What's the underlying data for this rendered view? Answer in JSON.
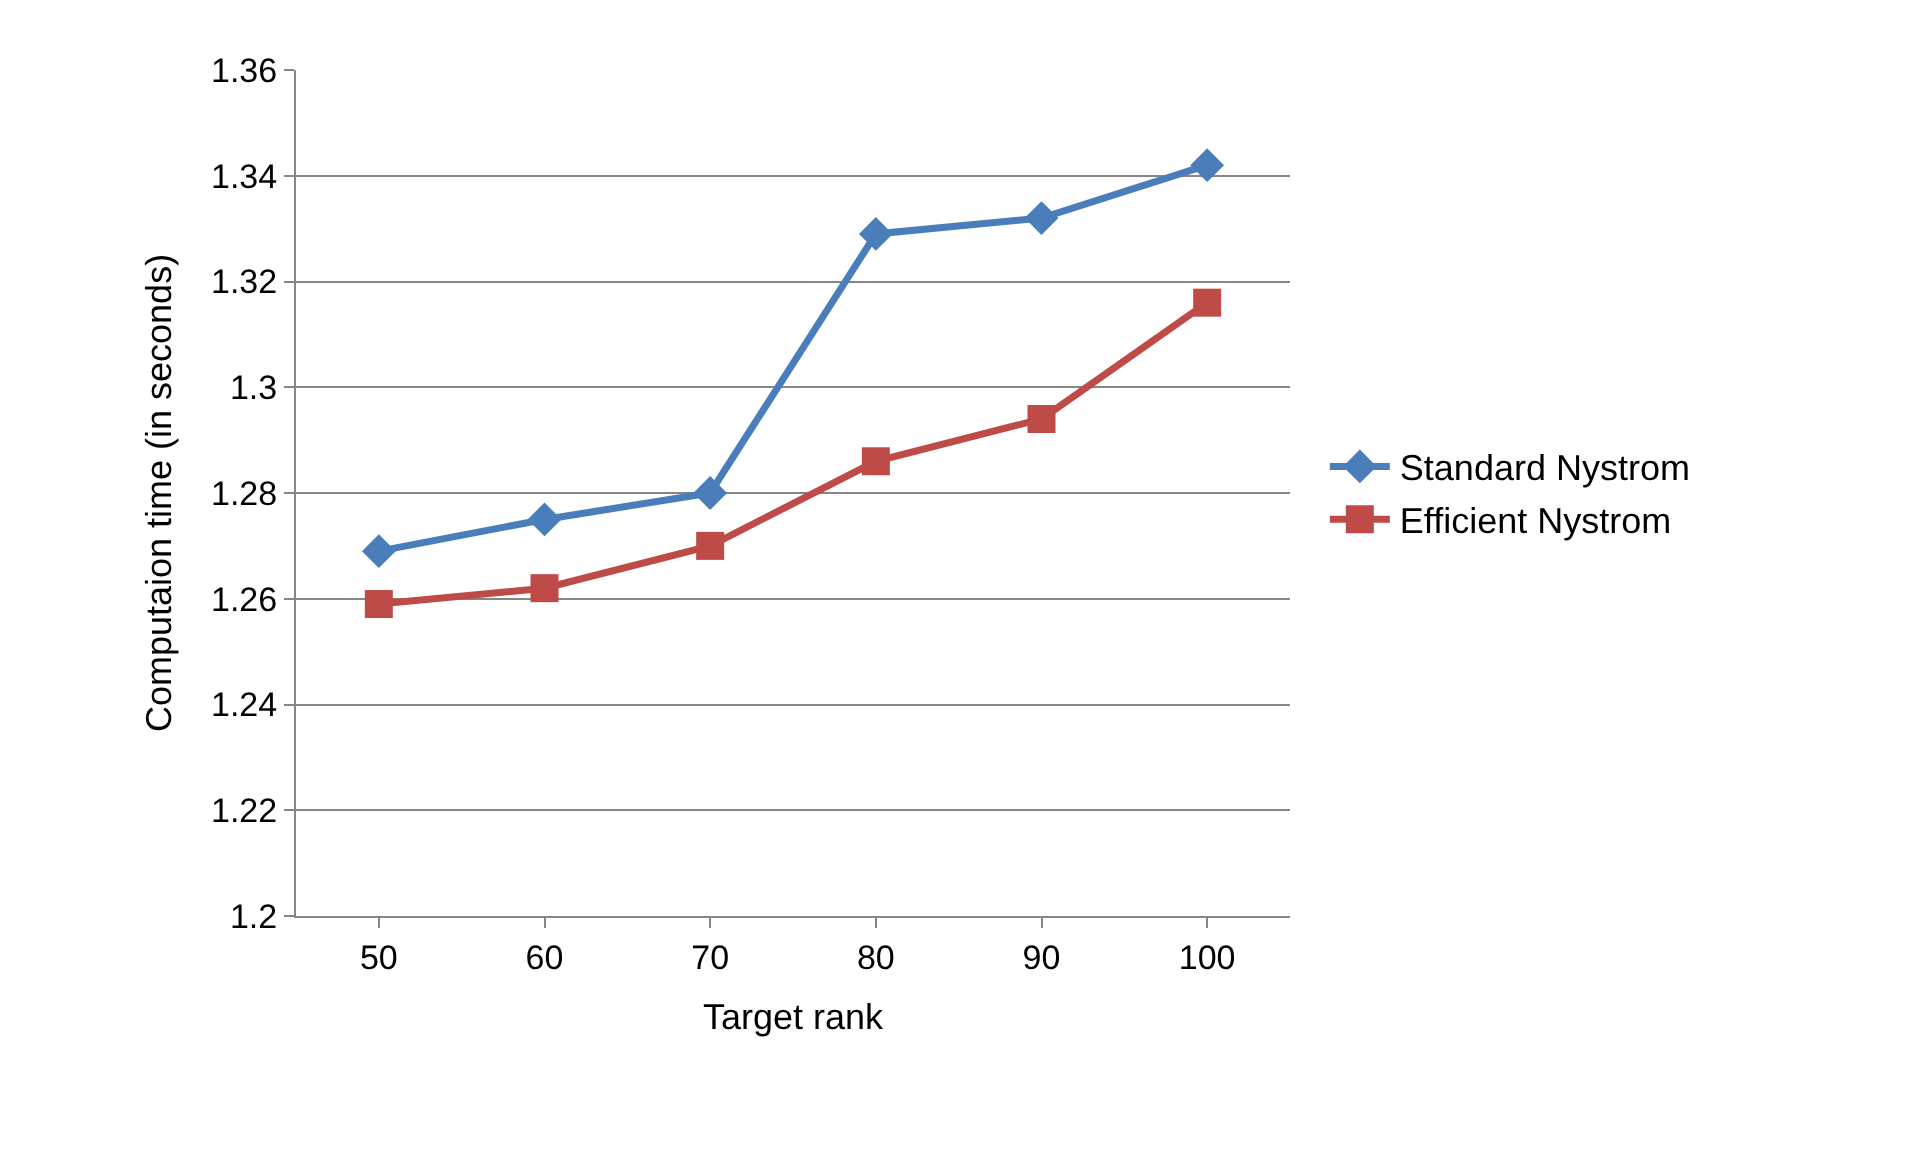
{
  "chart_data": {
    "type": "line",
    "xlabel": "Target rank",
    "ylabel": "Computaion time (in seconds)",
    "categories": [
      "50",
      "60",
      "70",
      "80",
      "90",
      "100"
    ],
    "series": [
      {
        "name": "Standard Nystrom",
        "color": "#4a7ebb",
        "marker": "diamond",
        "values": [
          1.269,
          1.275,
          1.28,
          1.329,
          1.332,
          1.342
        ]
      },
      {
        "name": "Efficient Nystrom",
        "color": "#be4b48",
        "marker": "square",
        "values": [
          1.259,
          1.262,
          1.27,
          1.286,
          1.294,
          1.316
        ]
      }
    ],
    "ylim": [
      1.2,
      1.36
    ],
    "yticks": [
      1.2,
      1.22,
      1.24,
      1.26,
      1.28,
      1.3,
      1.32,
      1.34,
      1.36
    ],
    "grid": "y",
    "legend": "right",
    "line_style": "solid"
  }
}
